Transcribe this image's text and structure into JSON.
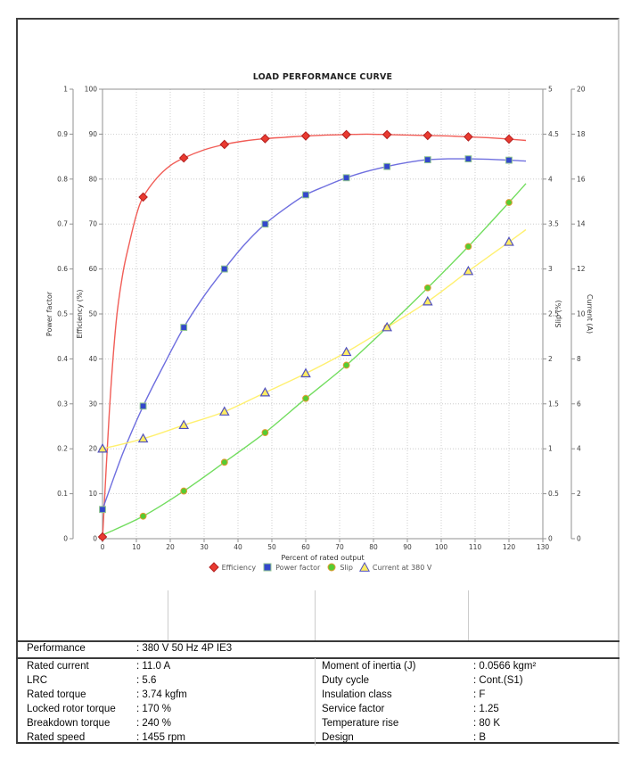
{
  "chart_data": {
    "type": "line",
    "title": "LOAD PERFORMANCE CURVE",
    "grid": true,
    "legend_position": "bottom",
    "x_axis": {
      "title": "Percent of rated output",
      "min": 0,
      "max": 130,
      "tick_step": 10
    },
    "y_axes": [
      {
        "id": "power_factor",
        "title": "Power factor",
        "min": 0,
        "max": 1,
        "tick_step": 0.1,
        "side": "left",
        "position": "outer"
      },
      {
        "id": "efficiency",
        "title": "Efficiency (%)",
        "min": 0,
        "max": 100,
        "tick_step": 10,
        "side": "left",
        "position": "inner"
      },
      {
        "id": "slip",
        "title": "Slip (%)",
        "min": 0,
        "max": 5,
        "tick_step": 0.5,
        "side": "right",
        "position": "inner"
      },
      {
        "id": "current",
        "title": "Current (A)",
        "min": 0,
        "max": 20,
        "tick_step": 2,
        "side": "right",
        "position": "outer"
      }
    ],
    "series": [
      {
        "name": "Efficiency",
        "axis": "efficiency",
        "marker": "diamond",
        "line_color": "#f04b45",
        "marker_fill": "#e93a30",
        "marker_edge": "#b42020",
        "markers_x": [
          0,
          12,
          24,
          36,
          48,
          60,
          72,
          84,
          96,
          108,
          120
        ],
        "markers_y": [
          0.4,
          76,
          84.7,
          87.7,
          89,
          89.6,
          89.9,
          89.9,
          89.7,
          89.4,
          88.9
        ],
        "curve": [
          [
            0,
            0
          ],
          [
            2,
            28
          ],
          [
            4,
            48
          ],
          [
            6,
            59
          ],
          [
            8,
            66
          ],
          [
            10,
            72
          ],
          [
            12,
            76
          ],
          [
            16,
            80.2
          ],
          [
            20,
            83
          ],
          [
            24,
            84.7
          ],
          [
            30,
            86.5
          ],
          [
            36,
            87.7
          ],
          [
            42,
            88.5
          ],
          [
            48,
            89
          ],
          [
            54,
            89.3
          ],
          [
            60,
            89.6
          ],
          [
            66,
            89.8
          ],
          [
            72,
            89.9
          ],
          [
            78,
            90
          ],
          [
            84,
            89.9
          ],
          [
            90,
            89.8
          ],
          [
            96,
            89.7
          ],
          [
            102,
            89.6
          ],
          [
            108,
            89.4
          ],
          [
            114,
            89.2
          ],
          [
            120,
            88.9
          ],
          [
            125,
            88.6
          ]
        ]
      },
      {
        "name": "Power factor",
        "axis": "power_factor",
        "marker": "square",
        "line_color": "#5f5fdc",
        "marker_fill": "#3347cb",
        "marker_edge": "#8fc48f",
        "markers_x": [
          0,
          12,
          24,
          36,
          48,
          60,
          72,
          84,
          96,
          108,
          120
        ],
        "markers_y": [
          0.065,
          0.295,
          0.47,
          0.6,
          0.7,
          0.765,
          0.803,
          0.828,
          0.843,
          0.845,
          0.842
        ],
        "curve": [
          [
            0,
            0.065
          ],
          [
            6,
            0.19
          ],
          [
            12,
            0.295
          ],
          [
            18,
            0.385
          ],
          [
            24,
            0.47
          ],
          [
            30,
            0.54
          ],
          [
            36,
            0.6
          ],
          [
            42,
            0.655
          ],
          [
            48,
            0.7
          ],
          [
            54,
            0.735
          ],
          [
            60,
            0.765
          ],
          [
            66,
            0.785
          ],
          [
            72,
            0.803
          ],
          [
            78,
            0.817
          ],
          [
            84,
            0.828
          ],
          [
            90,
            0.837
          ],
          [
            96,
            0.843
          ],
          [
            102,
            0.845
          ],
          [
            108,
            0.845
          ],
          [
            114,
            0.844
          ],
          [
            120,
            0.842
          ],
          [
            125,
            0.84
          ]
        ]
      },
      {
        "name": "Slip",
        "axis": "slip",
        "marker": "circle",
        "line_color": "#63d94e",
        "marker_fill": "#55cc33",
        "marker_edge": "#e39a33",
        "markers_x": [
          12,
          24,
          36,
          48,
          60,
          72,
          84,
          96,
          108,
          120
        ],
        "markers_y": [
          0.25,
          0.53,
          0.85,
          1.18,
          1.56,
          1.93,
          2.35,
          2.79,
          3.25,
          3.74
        ],
        "curve": [
          [
            0,
            0.04
          ],
          [
            12,
            0.25
          ],
          [
            24,
            0.53
          ],
          [
            36,
            0.85
          ],
          [
            48,
            1.18
          ],
          [
            60,
            1.56
          ],
          [
            72,
            1.93
          ],
          [
            84,
            2.35
          ],
          [
            96,
            2.79
          ],
          [
            108,
            3.25
          ],
          [
            120,
            3.74
          ],
          [
            125,
            3.95
          ]
        ]
      },
      {
        "name": "Current at 380 V",
        "axis": "current",
        "marker": "triangle",
        "line_color": "#ffee60",
        "marker_fill": "#ffec62",
        "marker_edge": "#5050c0",
        "markers_x": [
          0,
          12,
          24,
          36,
          48,
          60,
          72,
          84,
          96,
          108,
          120
        ],
        "markers_y": [
          4.0,
          4.45,
          5.05,
          5.65,
          6.5,
          7.35,
          8.3,
          9.4,
          10.55,
          11.9,
          13.2
        ],
        "curve": [
          [
            0,
            4.0
          ],
          [
            12,
            4.45
          ],
          [
            24,
            5.05
          ],
          [
            36,
            5.65
          ],
          [
            48,
            6.5
          ],
          [
            60,
            7.35
          ],
          [
            72,
            8.3
          ],
          [
            84,
            9.4
          ],
          [
            96,
            10.55
          ],
          [
            108,
            11.9
          ],
          [
            120,
            13.2
          ],
          [
            125,
            13.75
          ]
        ]
      }
    ]
  },
  "table": {
    "performance_label": "Performance",
    "performance_value": ": 380 V 50 Hz 4P IE3",
    "left_rows": [
      {
        "label": "Rated current",
        "value": ": 11.0 A"
      },
      {
        "label": "LRC",
        "value": ": 5.6"
      },
      {
        "label": "Rated torque",
        "value": ": 3.74 kgfm"
      },
      {
        "label": "Locked rotor torque",
        "value": ": 170 %"
      },
      {
        "label": "Breakdown torque",
        "value": ": 240 %"
      },
      {
        "label": "Rated speed",
        "value": ": 1455 rpm"
      }
    ],
    "right_rows": [
      {
        "label": "Moment of inertia (J)",
        "value": ": 0.0566 kgm²"
      },
      {
        "label": "Duty cycle",
        "value": ": Cont.(S1)"
      },
      {
        "label": "Insulation class",
        "value": ": F"
      },
      {
        "label": "Service factor",
        "value": ": 1.25"
      },
      {
        "label": "Temperature rise",
        "value": ": 80 K"
      },
      {
        "label": "Design",
        "value": ": B"
      }
    ]
  },
  "colors": {
    "grid": "#c4c4c4",
    "spine": "#909090",
    "tick_label": "#3a3a3a",
    "axis_title": "#333333",
    "chart_title": "#222222",
    "legend_text": "#555555",
    "table_border_dark": "#3a3a3a",
    "table_border_light": "#c9c9c9"
  }
}
